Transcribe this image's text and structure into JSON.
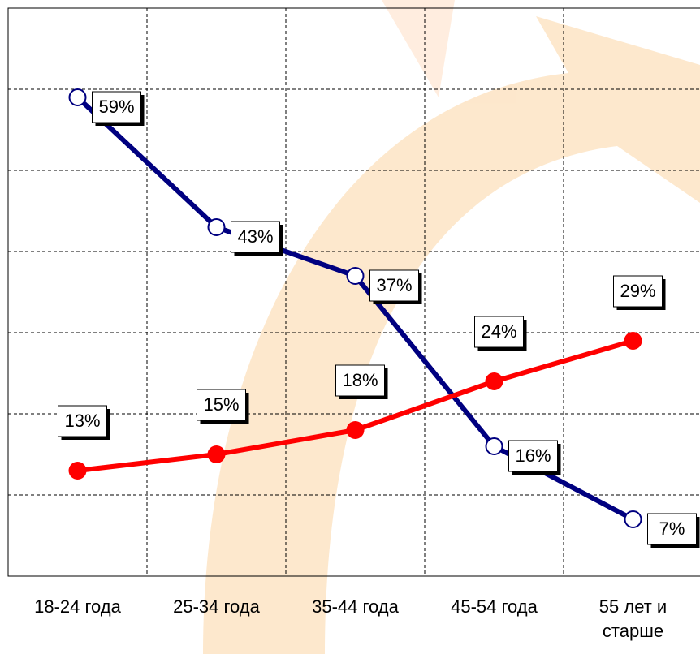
{
  "chart_data": {
    "type": "line",
    "categories": [
      "18-24 года",
      "25-34 года",
      "35-44 года",
      "45-54 года",
      "55 лет и старше"
    ],
    "series": [
      {
        "color": "#000080",
        "marker": "open",
        "label_position": "right",
        "values": [
          59,
          43,
          37,
          16,
          7
        ],
        "value_labels": [
          "59%",
          "43%",
          "37%",
          "16%",
          "7%"
        ]
      },
      {
        "color": "#ff0000",
        "marker": "filled",
        "label_position": "above",
        "values": [
          13,
          15,
          18,
          24,
          29
        ],
        "value_labels": [
          "13%",
          "15%",
          "18%",
          "24%",
          "29%"
        ]
      }
    ],
    "ylim": [
      0,
      70
    ],
    "yticks": [
      0,
      10,
      20,
      30,
      40,
      50,
      60,
      70
    ],
    "grid": true
  }
}
